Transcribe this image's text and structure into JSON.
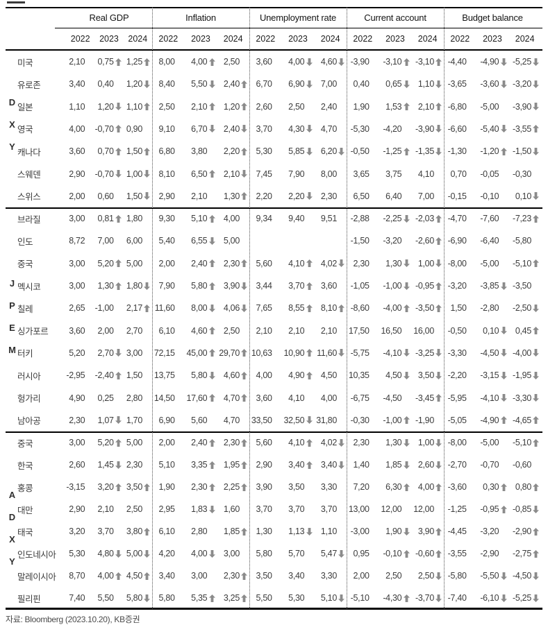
{
  "columns": {
    "metrics": [
      {
        "label": "Real GDP"
      },
      {
        "label": "Inflation"
      },
      {
        "label": "Unemployment rate"
      },
      {
        "label": "Current account"
      },
      {
        "label": "Budget balance"
      }
    ],
    "years": [
      "2022",
      "2023",
      "2024"
    ]
  },
  "groups": [
    {
      "letters": "DXY",
      "rows": [
        {
          "name": "미국",
          "cells": [
            "2,10",
            "0,75↑",
            "1,25↑",
            "8,00",
            "4,00↑",
            "2,50",
            "3,60",
            "4,00↓",
            "4,60↓",
            "-3,90",
            "-3,10↑",
            "-3,10↑",
            "-4,40",
            "-4,90↓",
            "-5,25↓"
          ]
        },
        {
          "name": "유로존",
          "cells": [
            "3,40",
            "0,40",
            "1,20↓",
            "8,40",
            "5,50↓",
            "2,40↑",
            "6,70",
            "6,90↓",
            "7,00",
            "0,40",
            "0,65↓",
            "1,10↓",
            "-3,65",
            "-3,60↓",
            "-3,20↓"
          ]
        },
        {
          "name": "일본",
          "cells": [
            "1,10",
            "1,20↓",
            "1,10↑",
            "2,50",
            "2,10↑",
            "1,20↑",
            "2,60",
            "2,50",
            "2,40",
            "1,90",
            "1,53↑",
            "2,10↑",
            "-6,80",
            "-5,00",
            "-3,90↓"
          ]
        },
        {
          "name": "영국",
          "cells": [
            "4,00",
            "-0,70↑",
            "0,90",
            "9,10",
            "6,70↓",
            "2,40↓",
            "3,70",
            "4,30↓",
            "4,70",
            "-5,30",
            "-4,20",
            "-3,90↓",
            "-6,60",
            "-5,40↓",
            "-3,55↑"
          ]
        },
        {
          "name": "캐나다",
          "cells": [
            "3,60",
            "0,70↑",
            "1,50↑",
            "6,80",
            "3,80",
            "2,20↑",
            "5,30",
            "5,85↓",
            "6,20↓",
            "-0,50",
            "-1,25↑",
            "-1,35↓",
            "-1,30",
            "-1,20↑",
            "-1,50↓"
          ]
        },
        {
          "name": "스웨덴",
          "cells": [
            "2,90",
            "-0,70↓",
            "1,00↓",
            "8,10",
            "6,50↑",
            "2,10↓",
            "7,45",
            "7,90",
            "8,00",
            "3,65",
            "3,75",
            "4,10",
            "0,70",
            "-0,05",
            "-0,30"
          ]
        },
        {
          "name": "스위스",
          "cells": [
            "2,00",
            "0,60",
            "1,50↓",
            "2,90",
            "2,10",
            "1,30↑",
            "2,20",
            "2,20↓",
            "2,30",
            "6,50",
            "6,40",
            "7,00",
            "-0,15",
            "-0,10",
            "0,10↓"
          ]
        }
      ]
    },
    {
      "letters": "JPEM",
      "rows": [
        {
          "name": "브라질",
          "cells": [
            "3,00",
            "0,81↑",
            "1,80",
            "9,30",
            "5,10↑",
            "4,00",
            "9,34",
            "9,40",
            "9,51",
            "-2,88",
            "-2,25↓",
            "-2,03↑",
            "-4,70",
            "-7,60",
            "-7,23↑"
          ]
        },
        {
          "name": "인도",
          "cells": [
            "8,72",
            "7,00",
            "6,00",
            "5,40",
            "6,55↓",
            "5,00",
            "",
            "",
            "",
            "-1,50",
            "-3,20",
            "-2,60↑",
            "-6,90",
            "-6,40",
            "-5,80"
          ]
        },
        {
          "name": "중국",
          "cells": [
            "3,00",
            "5,20↑",
            "5,00",
            "2,00",
            "2,40↑",
            "2,30↑",
            "5,60",
            "4,10↑",
            "4,02↓",
            "2,30",
            "1,30↓",
            "1,00↓",
            "-8,00",
            "-5,00",
            "-5,10↑"
          ]
        },
        {
          "name": "멕시코",
          "cells": [
            "3,00",
            "1,30↑",
            "1,80↓",
            "7,90",
            "5,80↑",
            "3,90↓",
            "3,44",
            "3,70↑",
            "3,60",
            "-1,05",
            "-1,00↓",
            "-0,95↑",
            "-3,20",
            "-3,85↓",
            "-3,50"
          ]
        },
        {
          "name": "칠레",
          "cells": [
            "2,65",
            "-1,00",
            "2,17↑",
            "11,60",
            "8,00↓",
            "4,06↓",
            "7,65",
            "8,55↑",
            "8,10↑",
            "-8,60",
            "-4,00↑",
            "-3,50↑",
            "1,50",
            "-2,80",
            "-2,50↓"
          ]
        },
        {
          "name": "싱가포르",
          "cells": [
            "3,60",
            "2,00",
            "2,70",
            "6,10",
            "4,60↑",
            "2,50",
            "2,10",
            "2,10",
            "2,10",
            "17,50",
            "16,50",
            "16,00",
            "-0,50",
            "0,10↓",
            "0,45↑"
          ]
        },
        {
          "name": "터키",
          "cells": [
            "5,20",
            "2,70↓",
            "3,00",
            "72,15",
            "45,00↑",
            "29,70↑",
            "10,63",
            "10,90↑",
            "11,60↓",
            "-5,75",
            "-4,10↓",
            "-3,25↓",
            "-3,30",
            "-4,50↓",
            "-4,00↓"
          ]
        },
        {
          "name": "러시아",
          "cells": [
            "-2,95",
            "-2,40↑",
            "1,50",
            "13,75",
            "5,80↓",
            "4,60↑",
            "4,00",
            "4,90↑",
            "4,50",
            "10,35",
            "4,50↓",
            "3,50↓",
            "-2,20",
            "-3,15↓",
            "-1,95↓"
          ]
        },
        {
          "name": "헝가리",
          "cells": [
            "4,90",
            "0,25",
            "2,80",
            "14,50",
            "17,60↑",
            "4,70↑",
            "3,60",
            "4,10",
            "4,00",
            "-6,75",
            "-4,50",
            "-3,45↑",
            "-5,95",
            "-4,10↓",
            "-3,30↓"
          ]
        },
        {
          "name": "남아공",
          "cells": [
            "2,30",
            "1,07↓",
            "1,70",
            "6,90",
            "5,60",
            "4,70",
            "33,50",
            "32,50↓",
            "31,80",
            "-0,30",
            "-1,00↑",
            "-1,90",
            "-5,05",
            "-4,90↑",
            "-4,65↑"
          ]
        }
      ]
    },
    {
      "letters": "ADXY",
      "rows": [
        {
          "name": "중국",
          "cells": [
            "3,00",
            "5,20↑",
            "5,00",
            "2,00",
            "2,40↑",
            "2,30↑",
            "5,60",
            "4,10↑",
            "4,02↓",
            "2,30",
            "1,30↓",
            "1,00↓",
            "-8,00",
            "-5,00",
            "-5,10↑"
          ]
        },
        {
          "name": "한국",
          "cells": [
            "2,60",
            "1,45↓",
            "2,30",
            "5,10",
            "3,35↑",
            "1,95↑",
            "2,90",
            "3,40↑",
            "3,40↓",
            "1,40",
            "1,85↓",
            "2,60↓",
            "-2,70",
            "-0,70",
            "-0,60"
          ]
        },
        {
          "name": "홍콩",
          "cells": [
            "-3,15",
            "3,20↑",
            "3,50↑",
            "1,90",
            "2,30↑",
            "2,25↑",
            "3,90",
            "3,50",
            "3,30",
            "7,20",
            "6,30↑",
            "4,00↑",
            "-3,60",
            "0,30↑",
            "0,80↑"
          ]
        },
        {
          "name": "대만",
          "cells": [
            "2,90",
            "2,10",
            "2,50",
            "2,95",
            "1,83↓",
            "1,60",
            "3,70",
            "3,70",
            "3,70",
            "13,00",
            "12,00",
            "12,00",
            "-1,25",
            "-0,95↑",
            "-0,85↓"
          ]
        },
        {
          "name": "태국",
          "cells": [
            "3,20",
            "3,70",
            "3,80↑",
            "6,10",
            "2,80",
            "1,85↑",
            "1,30",
            "1,13↓",
            "1,10",
            "-3,00",
            "1,90↓",
            "3,90↑",
            "-4,45",
            "-3,20",
            "-2,90↑"
          ]
        },
        {
          "name": "인도네시아",
          "cells": [
            "5,30",
            "4,80↓",
            "5,00↓",
            "4,20",
            "4,00↓",
            "3,00",
            "5,80",
            "5,70",
            "5,47↓",
            "0,95",
            "-0,10↑",
            "-0,60↑",
            "-3,55",
            "-2,90",
            "-2,75↑"
          ]
        },
        {
          "name": "말레이시아",
          "cells": [
            "8,70",
            "4,00↑",
            "4,50↑",
            "3,40",
            "3,00",
            "2,30↑",
            "3,50",
            "3,40",
            "3,30",
            "2,00",
            "2,50",
            "2,50↓",
            "-5,80",
            "-5,50↓",
            "-4,50↓"
          ]
        },
        {
          "name": "필리핀",
          "cells": [
            "7,40",
            "5,50",
            "5,80↓",
            "5,80",
            "5,35↑",
            "3,25↑",
            "5,50",
            "5,30",
            "5,10↓",
            "-5,10",
            "-4,30↑",
            "-3,70↓",
            "-7,40",
            "-6,10↓",
            "-5,25↓"
          ]
        }
      ]
    }
  ],
  "footer": {
    "source": "자료: Bloomberg (2023.10.20), KB증권"
  },
  "colors": {
    "text": "#3c3c3c",
    "arrow": "#8b8b8b",
    "border": "#000000"
  },
  "icons": {
    "up": "up-arrow-icon",
    "down": "down-arrow-icon"
  }
}
